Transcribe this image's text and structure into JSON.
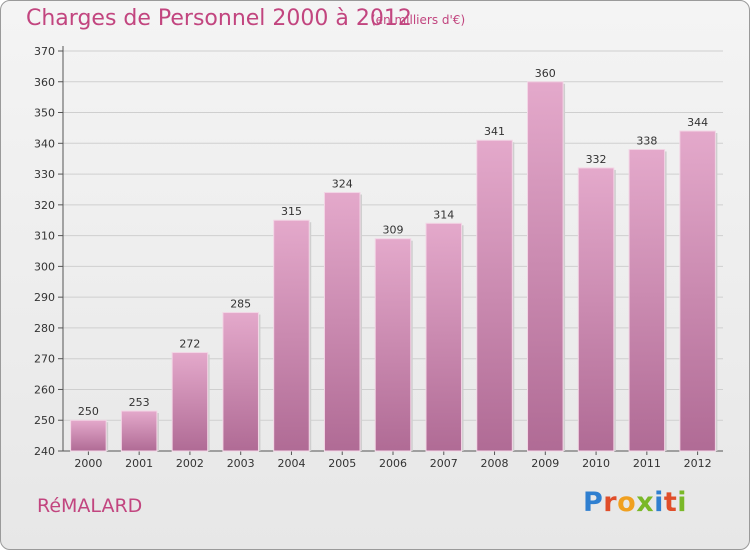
{
  "header": {
    "title": "Charges de Personnel 2000 à 2012",
    "subtitle": "(en milliers d'€)"
  },
  "footer": {
    "place": "RéMALARD",
    "logo_letters": [
      "P",
      "r",
      "o",
      "x",
      "i",
      "t",
      "i"
    ],
    "logo_colors": [
      "#2f7fd0",
      "#e04e2a",
      "#f0a020",
      "#7ab828",
      "#2f7fd0",
      "#e04e2a",
      "#7ab828"
    ]
  },
  "colors": {
    "bar_top": "#e4a9cb",
    "bar_bottom": "#b06b95",
    "title": "#c2457f"
  },
  "chart_data": {
    "type": "bar",
    "categories": [
      "2000",
      "2001",
      "2002",
      "2003",
      "2004",
      "2005",
      "2006",
      "2007",
      "2008",
      "2009",
      "2010",
      "2011",
      "2012"
    ],
    "values": [
      250,
      253,
      272,
      285,
      315,
      324,
      309,
      314,
      341,
      360,
      332,
      338,
      344
    ],
    "ylim": [
      240,
      370
    ],
    "yticks": [
      240,
      250,
      260,
      270,
      280,
      290,
      300,
      310,
      320,
      330,
      340,
      350,
      360,
      370
    ],
    "grid": true
  }
}
